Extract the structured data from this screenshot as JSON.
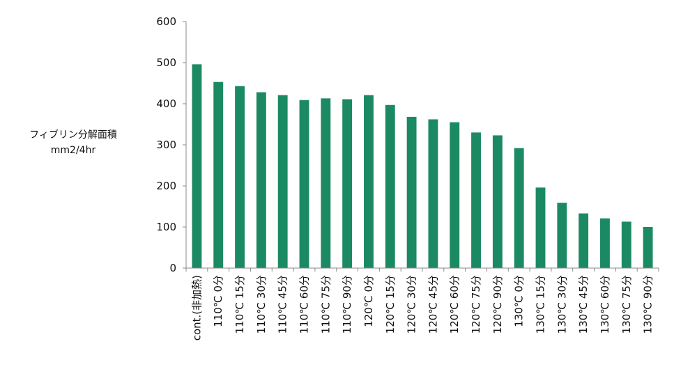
{
  "chart_data": {
    "type": "bar",
    "title": "",
    "xlabel": "",
    "ylabel_lines": [
      "フィブリン分解面積",
      "mm2/4hr"
    ],
    "ylim": [
      0,
      600
    ],
    "yticks": [
      0,
      100,
      200,
      300,
      400,
      500,
      600
    ],
    "grid": false,
    "legend": "none",
    "bar_color": "#1b8a63",
    "categories": [
      "cont.(非加熱)",
      "110℃ 0分",
      "110℃ 15分",
      "110℃ 30分",
      "110℃ 45分",
      "110℃ 60分",
      "110℃ 75分",
      "110℃ 90分",
      "120℃ 0分",
      "120℃ 15分",
      "120℃ 30分",
      "120℃ 45分",
      "120℃ 60分",
      "120℃ 75分",
      "120℃ 90分",
      "130℃ 0分",
      "130℃ 15分",
      "130℃ 30分",
      "130℃ 45分",
      "130℃ 60分",
      "130℃ 75分",
      "130℃ 90分"
    ],
    "values": [
      496,
      453,
      443,
      428,
      421,
      409,
      413,
      411,
      421,
      397,
      368,
      362,
      355,
      330,
      323,
      292,
      196,
      159,
      133,
      121,
      113,
      100
    ]
  }
}
